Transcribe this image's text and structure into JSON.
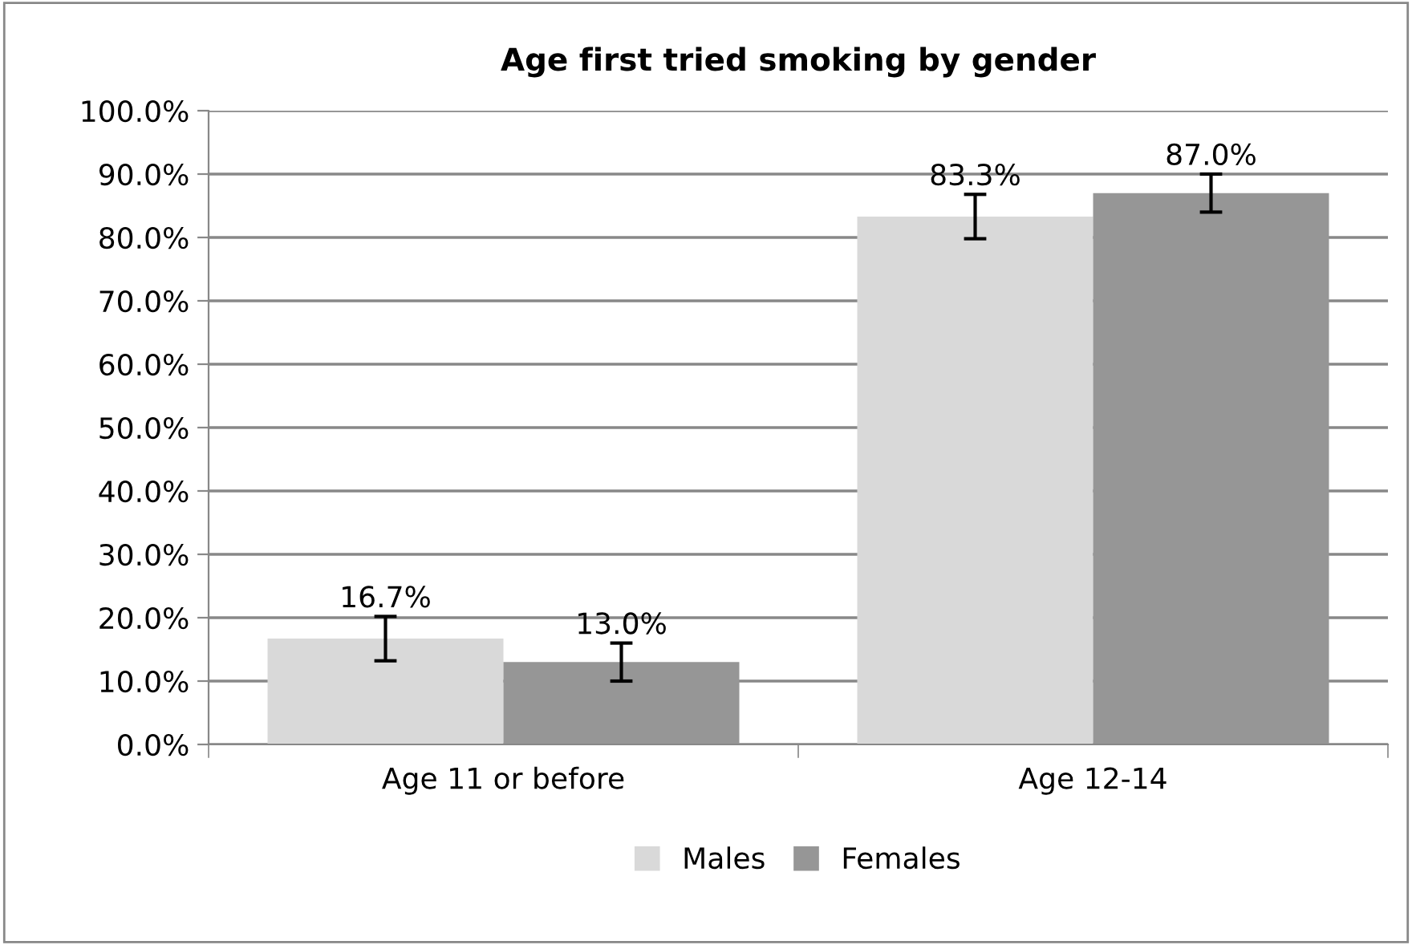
{
  "chart_data": {
    "type": "bar",
    "title": "Age first tried smoking by gender",
    "categories": [
      "Age 11 or before",
      "Age 12-14"
    ],
    "series": [
      {
        "name": "Males",
        "color": "#d9d9d9",
        "values": [
          16.7,
          83.3
        ],
        "errors": [
          3.5,
          3.5
        ],
        "value_labels": [
          "16.7%",
          "83.3%"
        ]
      },
      {
        "name": "Females",
        "color": "#969696",
        "values": [
          13.0,
          87.0
        ],
        "errors": [
          3,
          3
        ],
        "value_labels": [
          "13.0%",
          "87.0%"
        ]
      }
    ],
    "ylim": [
      0,
      100
    ],
    "yticks": [
      {
        "value": 0,
        "label": "0.0%"
      },
      {
        "value": 10,
        "label": "10.0%"
      },
      {
        "value": 20,
        "label": "20.0%"
      },
      {
        "value": 30,
        "label": "30.0%"
      },
      {
        "value": 40,
        "label": "40.0%"
      },
      {
        "value": 50,
        "label": "50.0%"
      },
      {
        "value": 60,
        "label": "60.0%"
      },
      {
        "value": 70,
        "label": "70.0%"
      },
      {
        "value": 80,
        "label": "80.0%"
      },
      {
        "value": 90,
        "label": "90.0%"
      },
      {
        "value": 100,
        "label": "100.0%"
      }
    ],
    "grid": "y",
    "legend": "bottom"
  }
}
